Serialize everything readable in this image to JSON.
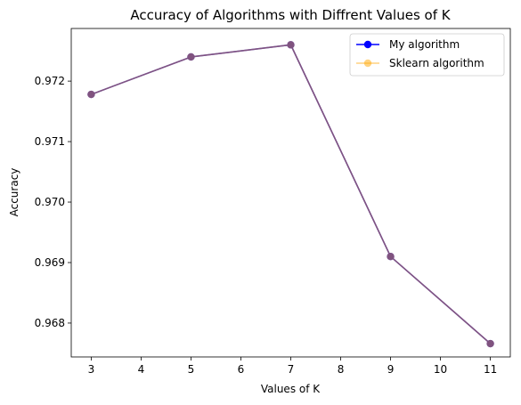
{
  "chart_data": {
    "type": "line",
    "title": "Accuracy of Algorithms with Diffrent Values of K",
    "xlabel": "Values of K",
    "ylabel": "Accuracy",
    "x": [
      3,
      5,
      7,
      9,
      11
    ],
    "xlim": [
      2.6,
      11.4
    ],
    "ylim": [
      0.96744,
      0.97287
    ],
    "xticks": [
      3,
      4,
      5,
      6,
      7,
      8,
      9,
      10,
      11
    ],
    "xtick_labels": [
      "3",
      "4",
      "5",
      "6",
      "7",
      "8",
      "9",
      "10",
      "11"
    ],
    "yticks": [
      0.968,
      0.969,
      0.97,
      0.971,
      0.972
    ],
    "ytick_labels": [
      "0.968",
      "0.969",
      "0.970",
      "0.971",
      "0.972"
    ],
    "grid": false,
    "legend_position": "top-right",
    "series": [
      {
        "name": "My algorithm",
        "color": "#0000ff",
        "alpha": 1.0,
        "marker": "circle",
        "values": [
          0.97178,
          0.9724,
          0.9726,
          0.9691,
          0.96766
        ]
      },
      {
        "name": "Sklearn algorithm",
        "color": "#ffa500",
        "alpha": 0.5,
        "marker": "circle",
        "values": [
          0.97178,
          0.9724,
          0.9726,
          0.9691,
          0.96766
        ]
      }
    ]
  }
}
